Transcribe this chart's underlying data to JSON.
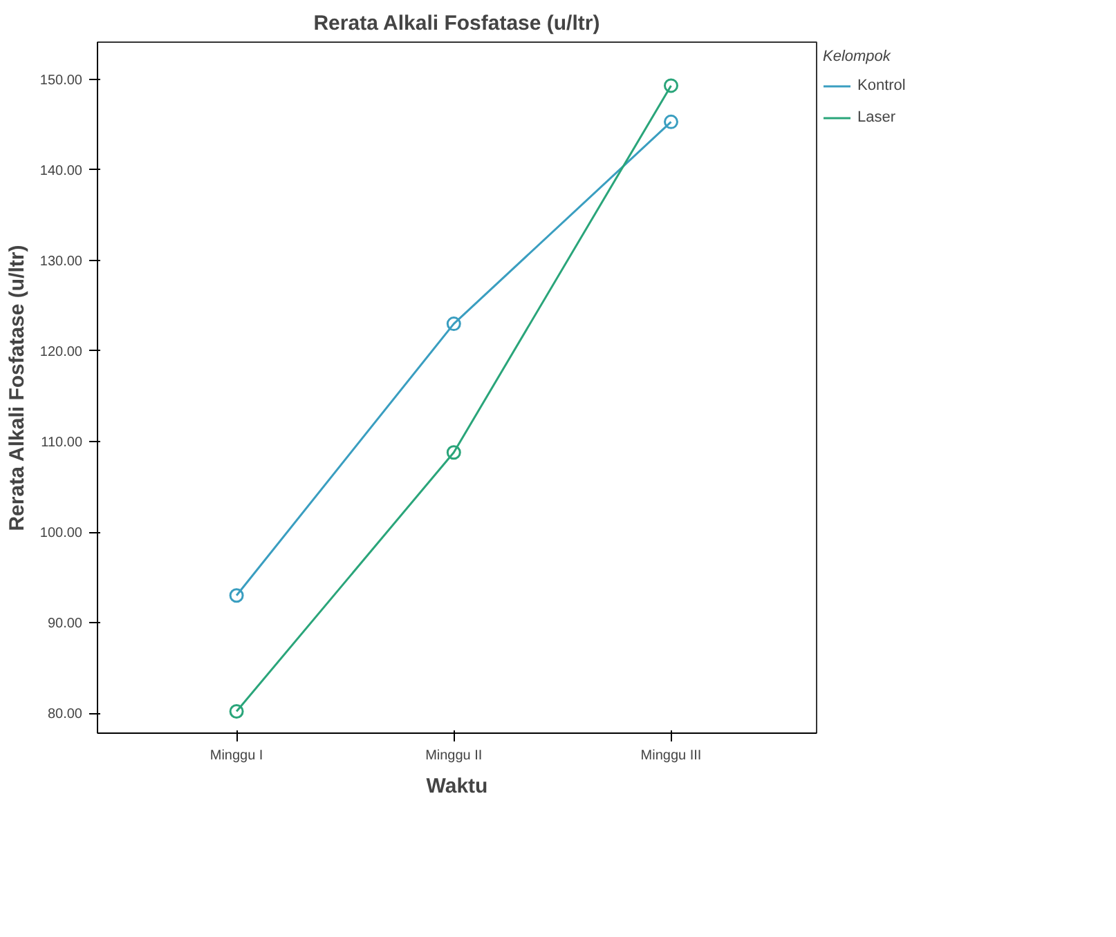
{
  "chart_data": {
    "type": "line",
    "title": "Rerata Alkali Fosfatase (u/ltr)",
    "xlabel": "Waktu",
    "ylabel": "Rerata Alkali Fosfatase (u/ltr)",
    "legend_title": "Kelompok",
    "categories": [
      "Minggu I",
      "Minggu II",
      "Minggu III"
    ],
    "series": [
      {
        "name": "Kontrol",
        "color": "#3a9ec0",
        "values": [
          93,
          123,
          145.3
        ]
      },
      {
        "name": "Laser",
        "color": "#2aa57a",
        "values": [
          80.2,
          108.8,
          149.3
        ]
      }
    ],
    "ylim": [
      77.8,
      154.1
    ],
    "yticks": [
      {
        "value": 80,
        "label": "80.00"
      },
      {
        "value": 90,
        "label": "90.00"
      },
      {
        "value": 100,
        "label": "100.00"
      },
      {
        "value": 110,
        "label": "110.00"
      },
      {
        "value": 120,
        "label": "120.00"
      },
      {
        "value": 130,
        "label": "130.00"
      },
      {
        "value": 140,
        "label": "140.00"
      },
      {
        "value": 150,
        "label": "150.00"
      }
    ],
    "grid": false,
    "legend": "top right",
    "marker": "circle",
    "line_style": "solid"
  }
}
